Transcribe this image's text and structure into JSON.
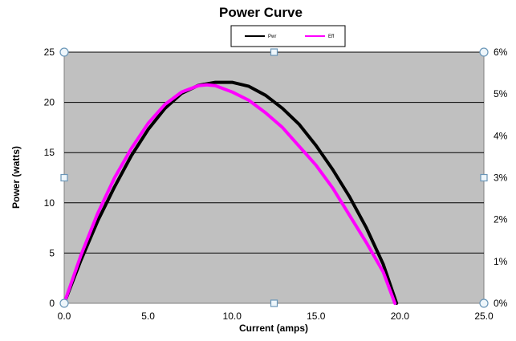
{
  "chart_data": {
    "type": "line",
    "title": "Power Curve",
    "xlabel": "Current (amps)",
    "ylabel": "Power (watts)",
    "xlim": [
      0,
      25
    ],
    "ylim": [
      0,
      25
    ],
    "y2lim": [
      0,
      6
    ],
    "x_ticks": [
      "0.0",
      "5.0",
      "10.0",
      "15.0",
      "20.0",
      "25.0"
    ],
    "y_ticks": [
      "0",
      "5",
      "10",
      "15",
      "20",
      "25"
    ],
    "y2_ticks": [
      "0%",
      "1%",
      "2%",
      "3%",
      "4%",
      "5%",
      "6%"
    ],
    "grid": "horizontal",
    "plot_background": "#c0c0c0",
    "legend_position": "top",
    "series": [
      {
        "name": "Pwr",
        "color": "#000000",
        "axis": "left",
        "x": [
          0,
          1,
          2,
          3,
          4,
          5,
          6,
          7,
          8,
          9,
          10,
          11,
          12,
          13,
          14,
          15,
          16,
          17,
          18,
          19,
          19.8
        ],
        "y": [
          0,
          4.3,
          8.2,
          11.6,
          14.7,
          17.3,
          19.4,
          20.9,
          21.7,
          22.0,
          22.0,
          21.6,
          20.7,
          19.4,
          17.8,
          15.7,
          13.3,
          10.6,
          7.5,
          3.9,
          0
        ]
      },
      {
        "name": "Eff",
        "color": "#ff00ff",
        "axis": "right",
        "x": [
          0,
          1,
          2,
          3,
          4,
          5,
          6,
          7,
          8,
          8.5,
          9,
          10,
          11,
          12,
          13,
          14,
          15,
          16,
          17,
          18,
          19,
          19.7
        ],
        "y": [
          0,
          1.15,
          2.15,
          3.0,
          3.7,
          4.3,
          4.75,
          5.05,
          5.2,
          5.22,
          5.2,
          5.05,
          4.85,
          4.55,
          4.2,
          3.75,
          3.3,
          2.75,
          2.1,
          1.45,
          0.75,
          0
        ]
      }
    ]
  }
}
